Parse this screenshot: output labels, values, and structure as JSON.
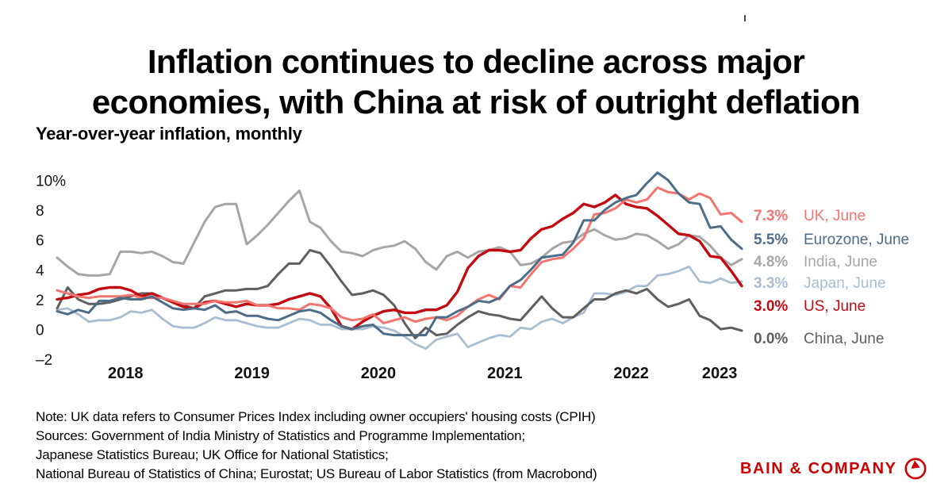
{
  "title": {
    "line1": "Inflation continues to decline across major",
    "line2": "economies, with China at risk of outright deflation"
  },
  "subtitle": "Year-over-year inflation, monthly",
  "chart_data": {
    "type": "line",
    "title": "Year-over-year inflation, monthly",
    "x_range": "Jan 2018 - Jun 2023 (monthly)",
    "x_tick_labels": [
      "2018",
      "2019",
      "2020",
      "2021",
      "2022",
      "2023"
    ],
    "x_tick_month_pos": [
      6.5,
      18.5,
      30.5,
      42.5,
      54.5,
      62.9
    ],
    "y_tick_labels": [
      "10%",
      "8",
      "6",
      "4",
      "2",
      "0",
      "–2"
    ],
    "y_ticks": [
      10,
      8,
      6,
      4,
      2,
      0,
      -2
    ],
    "ylim": [
      -2.8,
      11.2
    ],
    "grid": false,
    "legend_position": "right",
    "series": [
      {
        "name": "India",
        "color": "#a6a6a6",
        "values": [
          4.9,
          4.3,
          3.8,
          3.7,
          3.7,
          3.8,
          5.3,
          5.3,
          5.2,
          5.3,
          5.0,
          4.6,
          4.5,
          5.9,
          7.3,
          8.3,
          8.5,
          8.5,
          5.8,
          6.4,
          7.1,
          7.9,
          8.7,
          9.4,
          7.3,
          6.9,
          6.0,
          5.3,
          5.2,
          5.0,
          5.4,
          5.6,
          5.7,
          6.0,
          5.5,
          4.6,
          4.1,
          5.0,
          5.3,
          4.9,
          5.3,
          5.4,
          5.6,
          5.3,
          4.4,
          4.5,
          4.9,
          5.5,
          5.9,
          6.0,
          6.5,
          6.8,
          6.4,
          6.1,
          6.2,
          6.5,
          6.4,
          6.0,
          5.5,
          5.8,
          6.4,
          6.3,
          5.7,
          4.9,
          4.4,
          4.8
        ]
      },
      {
        "name": "Japan",
        "color": "#a9bed3",
        "values": [
          1.4,
          1.5,
          1.1,
          0.6,
          0.7,
          0.7,
          0.9,
          1.3,
          1.2,
          1.4,
          0.8,
          0.3,
          0.2,
          0.2,
          0.5,
          0.9,
          0.7,
          0.7,
          0.5,
          0.3,
          0.2,
          0.2,
          0.5,
          0.8,
          0.7,
          0.4,
          0.4,
          0.1,
          0.1,
          0.1,
          0.3,
          0.2,
          0.0,
          -0.4,
          -0.9,
          -1.2,
          -0.6,
          -0.4,
          -0.2,
          -1.1,
          -0.8,
          -0.5,
          -0.3,
          -0.4,
          0.2,
          0.1,
          0.6,
          0.8,
          0.5,
          0.9,
          1.2,
          2.5,
          2.5,
          2.4,
          2.6,
          3.0,
          3.0,
          3.7,
          3.8,
          4.0,
          4.3,
          3.3,
          3.2,
          3.5,
          3.2,
          3.3
        ]
      },
      {
        "name": "China",
        "color": "#5f5f5f",
        "values": [
          1.5,
          2.9,
          2.1,
          1.8,
          1.8,
          1.9,
          2.1,
          2.3,
          2.5,
          2.5,
          2.2,
          1.9,
          1.7,
          1.5,
          2.3,
          2.5,
          2.7,
          2.7,
          2.8,
          2.8,
          3.0,
          3.8,
          4.5,
          4.5,
          5.4,
          5.2,
          4.3,
          3.3,
          2.4,
          2.5,
          2.7,
          2.4,
          1.7,
          0.5,
          -0.5,
          0.2,
          -0.3,
          -0.2,
          0.4,
          0.9,
          1.3,
          1.1,
          1.0,
          0.8,
          0.7,
          1.5,
          2.3,
          1.5,
          0.9,
          0.9,
          1.5,
          2.1,
          2.1,
          2.5,
          2.7,
          2.5,
          2.8,
          2.1,
          1.6,
          1.8,
          2.1,
          1.0,
          0.7,
          0.1,
          0.2,
          0.0
        ]
      },
      {
        "name": "US",
        "color": "#c20a10",
        "values": [
          2.1,
          2.2,
          2.4,
          2.5,
          2.8,
          2.9,
          2.9,
          2.7,
          2.3,
          2.5,
          2.2,
          1.9,
          1.6,
          1.5,
          1.9,
          2.0,
          1.8,
          1.6,
          1.8,
          1.7,
          1.7,
          1.8,
          2.1,
          2.3,
          2.5,
          2.3,
          1.5,
          0.3,
          0.1,
          0.6,
          1.0,
          1.3,
          1.4,
          1.2,
          1.2,
          1.4,
          1.4,
          1.7,
          2.6,
          4.2,
          5.0,
          5.4,
          5.4,
          5.3,
          5.4,
          6.2,
          6.8,
          7.0,
          7.5,
          7.9,
          8.5,
          8.3,
          8.6,
          9.1,
          8.5,
          8.3,
          8.2,
          7.7,
          7.1,
          6.5,
          6.4,
          6.0,
          5.0,
          4.9,
          4.0,
          3.0
        ]
      },
      {
        "name": "UK",
        "color": "#f4756f",
        "values": [
          2.7,
          2.5,
          2.3,
          2.2,
          2.3,
          2.3,
          2.3,
          2.4,
          2.2,
          2.2,
          2.2,
          2.0,
          1.8,
          1.8,
          1.8,
          2.0,
          1.9,
          1.9,
          2.0,
          1.7,
          1.7,
          1.5,
          1.5,
          1.4,
          1.8,
          1.7,
          1.5,
          0.9,
          0.7,
          0.8,
          1.1,
          0.5,
          0.7,
          0.9,
          0.6,
          0.8,
          0.9,
          0.7,
          1.0,
          1.6,
          2.1,
          2.4,
          2.1,
          3.0,
          2.9,
          3.8,
          4.6,
          4.8,
          4.9,
          5.5,
          6.2,
          7.8,
          7.9,
          8.2,
          8.8,
          8.6,
          8.8,
          9.6,
          9.3,
          9.2,
          8.8,
          9.2,
          8.9,
          7.8,
          7.9,
          7.3
        ]
      },
      {
        "name": "Eurozone",
        "color": "#4d6c88",
        "values": [
          1.3,
          1.1,
          1.4,
          1.2,
          2.0,
          2.0,
          2.2,
          2.1,
          2.1,
          2.3,
          1.9,
          1.5,
          1.4,
          1.5,
          1.4,
          1.7,
          1.2,
          1.3,
          1.0,
          1.0,
          0.8,
          0.7,
          1.0,
          1.3,
          1.4,
          1.2,
          0.7,
          0.3,
          0.1,
          0.3,
          0.4,
          -0.2,
          -0.3,
          -0.3,
          -0.3,
          -0.3,
          0.9,
          0.9,
          1.3,
          1.6,
          2.0,
          1.9,
          2.2,
          3.0,
          3.4,
          4.1,
          4.9,
          5.0,
          5.1,
          5.9,
          7.4,
          7.4,
          8.1,
          8.6,
          8.9,
          9.1,
          9.9,
          10.6,
          10.1,
          9.2,
          8.6,
          8.5,
          6.9,
          7.0,
          6.1,
          5.5
        ]
      }
    ]
  },
  "legend": {
    "rows": [
      {
        "value": "7.3%",
        "label": "UK, June",
        "series": "UK"
      },
      {
        "value": "5.5%",
        "label": "Eurozone, June",
        "series": "Eurozone"
      },
      {
        "value": "4.8%",
        "label": "India, June",
        "series": "India"
      },
      {
        "value": "3.3%",
        "label": "Japan, June",
        "series": "Japan"
      },
      {
        "value": "3.0%",
        "label": "US, June",
        "series": "US"
      },
      {
        "value": "0.0%",
        "label": "China, June",
        "series": "China"
      }
    ]
  },
  "notes": {
    "lines": [
      "Note: UK data refers to Consumer Prices Index including owner occupiers' housing costs (CPIH)",
      "Sources: Government of India Ministry of Statistics and Programme Implementation;",
      "Japanese Statistics Bureau; UK Office for National Statistics;",
      "National Bureau of Statistics of China; Eurostat; US Bureau of Labor Statistics (from Macrobond)"
    ]
  },
  "logo": {
    "text": "BAIN & COMPANY",
    "color": "#cc0000"
  }
}
